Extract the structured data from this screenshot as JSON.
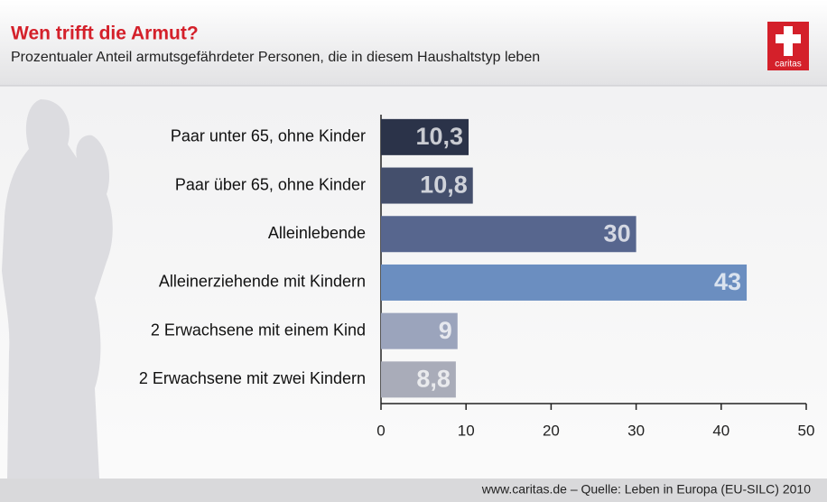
{
  "chart_data": {
    "type": "bar",
    "orientation": "horizontal",
    "title": "Wen trifft die Armut?",
    "subtitle": "Prozentualer Anteil armutsgefährdeter Personen, die in diesem Haushaltstyp leben",
    "categories": [
      "Paar unter 65, ohne Kinder",
      "Paar über 65, ohne Kinder",
      "Alleinlebende",
      "Alleinerziehende mit Kindern",
      "2 Erwachsene mit einem Kind",
      "2 Erwachsene mit zwei Kindern"
    ],
    "values": [
      10.3,
      10.8,
      30,
      43,
      9,
      8.8
    ],
    "value_labels": [
      "10,3",
      "10,8",
      "30",
      "43",
      "9",
      "8,8"
    ],
    "colors": [
      "#2b3349",
      "#444f6c",
      "#57668e",
      "#6b8ec0",
      "#9ba4bc",
      "#a9acb9"
    ],
    "xlim": [
      0,
      50
    ],
    "xticks": [
      0,
      10,
      20,
      30,
      40,
      50
    ],
    "grid": false,
    "source": "www.caritas.de – Quelle: Leben in Europa (EU-SILC) 2010",
    "logo_text": "caritas"
  }
}
